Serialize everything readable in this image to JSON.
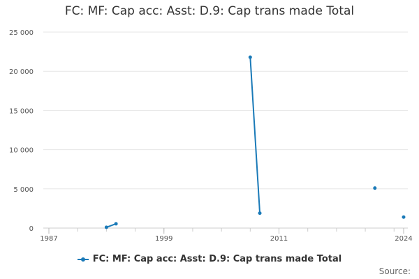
{
  "title": "FC: MF: Cap acc: Asst: D.9: Cap trans made Total",
  "source_label": "Source:",
  "chart_data": {
    "type": "line",
    "title": "FC: MF: Cap acc: Asst: D.9: Cap trans made Total",
    "xlabel": "",
    "ylabel": "",
    "xlim": [
      1987,
      2024
    ],
    "ylim": [
      0,
      25000
    ],
    "x_ticks": [
      1987,
      1999,
      2011,
      2024
    ],
    "y_ticks": [
      0,
      5000,
      10000,
      15000,
      20000,
      25000
    ],
    "y_tick_labels": [
      "0",
      "5 000",
      "10 000",
      "15 000",
      "20 000",
      "25 000"
    ],
    "grid": true,
    "legend_position": "bottom",
    "color": "#1a7ab8",
    "series": [
      {
        "name": "FC: MF: Cap acc: Asst: D.9: Cap trans made Total",
        "points": [
          {
            "x": 1993,
            "y": 100
          },
          {
            "x": 1994,
            "y": 550
          },
          {
            "x": 2008,
            "y": 21800
          },
          {
            "x": 2009,
            "y": 1900
          },
          {
            "x": 2021,
            "y": 5100
          },
          {
            "x": 2024,
            "y": 1400
          }
        ],
        "segments": [
          [
            0,
            1
          ],
          [
            2,
            3
          ]
        ]
      }
    ]
  }
}
